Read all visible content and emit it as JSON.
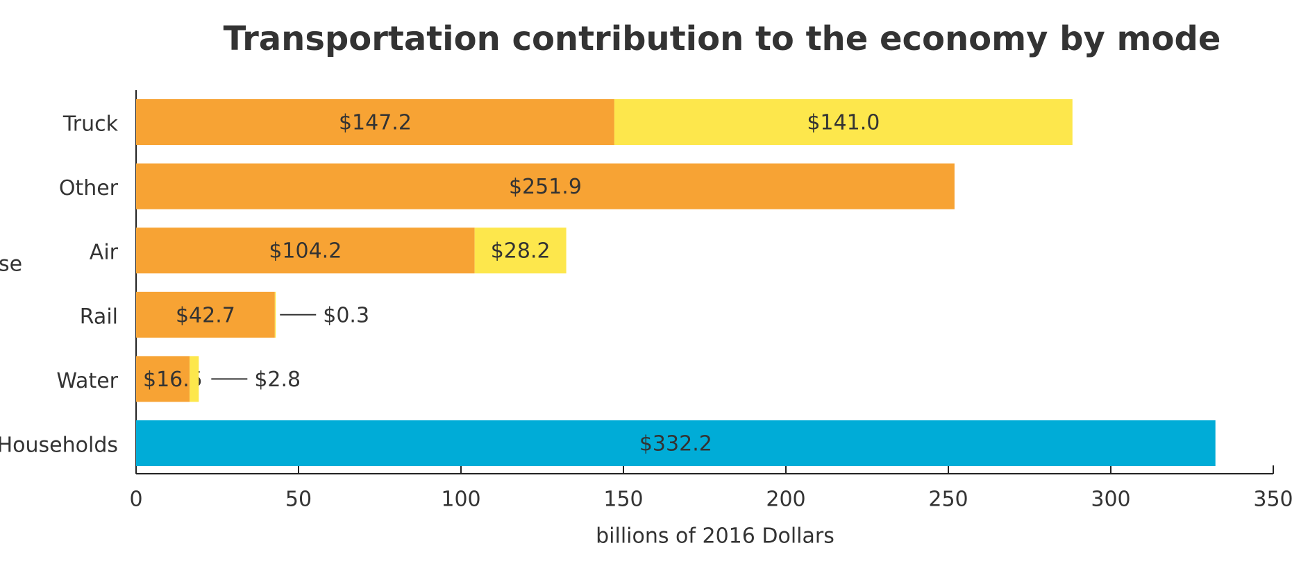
{
  "chart_data": {
    "type": "bar",
    "orientation": "horizontal",
    "stacked": true,
    "title": "Transportation contribution to the economy by mode",
    "xlabel": "billions of 2016 Dollars",
    "group_label": "se",
    "categories": [
      "Truck",
      "Other",
      "Air",
      "Rail",
      "Water",
      "Households"
    ],
    "series": [
      {
        "color": "#f7a334",
        "values": [
          147.2,
          251.9,
          104.2,
          42.7,
          16.5,
          null
        ],
        "value_labels": [
          "$147.2",
          "$251.9",
          "$104.2",
          "$42.7",
          "$16.5",
          null
        ]
      },
      {
        "color": "#fde74c",
        "values": [
          141.0,
          null,
          28.2,
          0.3,
          2.8,
          null
        ],
        "value_labels": [
          "$141.0",
          null,
          "$28.2",
          "$0.3",
          "$2.8",
          null
        ]
      },
      {
        "color": "#00acd7",
        "values": [
          null,
          null,
          null,
          null,
          null,
          332.2
        ],
        "value_labels": [
          null,
          null,
          null,
          null,
          null,
          "$332.2"
        ]
      }
    ],
    "xlim": [
      0,
      350
    ],
    "xticks": [
      0,
      50,
      100,
      150,
      200,
      250,
      300,
      350
    ]
  }
}
